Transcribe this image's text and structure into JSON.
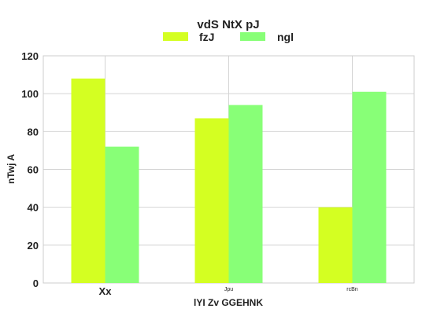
{
  "chart_data": {
    "type": "bar",
    "categories": [
      "Xx",
      "Jpu",
      "rcBn"
    ],
    "series": [
      {
        "name": "fzJ",
        "values": [
          108,
          87,
          40
        ]
      },
      {
        "name": "ngl",
        "values": [
          72,
          94,
          101
        ]
      }
    ],
    "legend_title": "vdS NtX pJ",
    "xlabel": "lYI  Zv GGEHNK",
    "ylabel": "nTwj A",
    "ylim": [
      0,
      120
    ],
    "yticks": [
      0,
      20,
      40,
      60,
      80,
      100,
      120
    ],
    "grid": true,
    "legend_position": "top-center",
    "colors": [
      "#d4ff22",
      "#88ff77"
    ],
    "tick_font_sizes": [
      "large",
      "tiny",
      "tiny"
    ]
  }
}
